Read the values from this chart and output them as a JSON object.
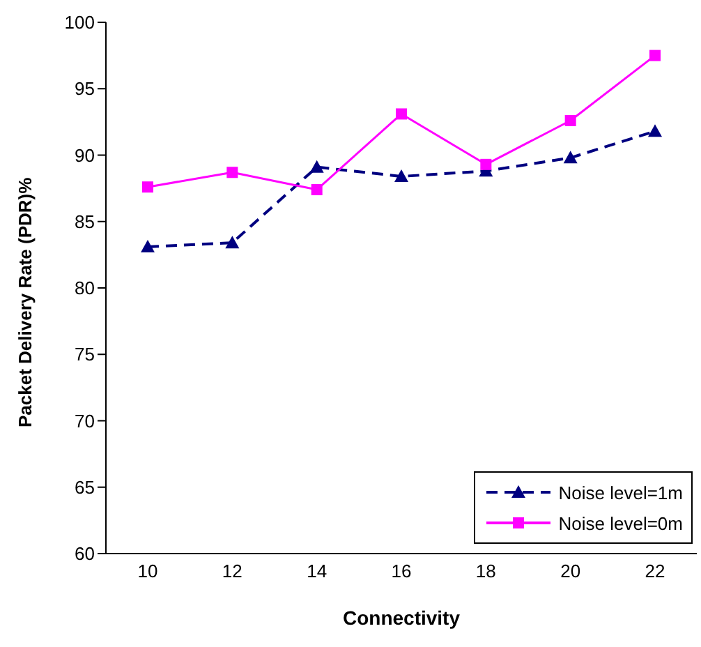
{
  "chart_data": {
    "type": "line",
    "xlabel": "Connectivity",
    "ylabel": "Packet Delivery Rate (PDR)%",
    "categories": [
      "10",
      "12",
      "14",
      "16",
      "18",
      "20",
      "22"
    ],
    "series": [
      {
        "name": "Noise level=1m",
        "color": "#000080",
        "marker": "triangle",
        "line_style": "dashed",
        "values": [
          83.1,
          83.4,
          89.1,
          88.4,
          88.8,
          89.8,
          91.8
        ]
      },
      {
        "name": "Noise level=0m",
        "color": "#ff00ff",
        "marker": "square",
        "line_style": "solid",
        "values": [
          87.6,
          88.7,
          87.4,
          93.1,
          89.3,
          92.6,
          97.5
        ]
      }
    ],
    "ylim": [
      60,
      100
    ],
    "yticks": [
      60,
      65,
      70,
      75,
      80,
      85,
      90,
      95,
      100
    ],
    "grid": false,
    "legend": "bottom right"
  }
}
